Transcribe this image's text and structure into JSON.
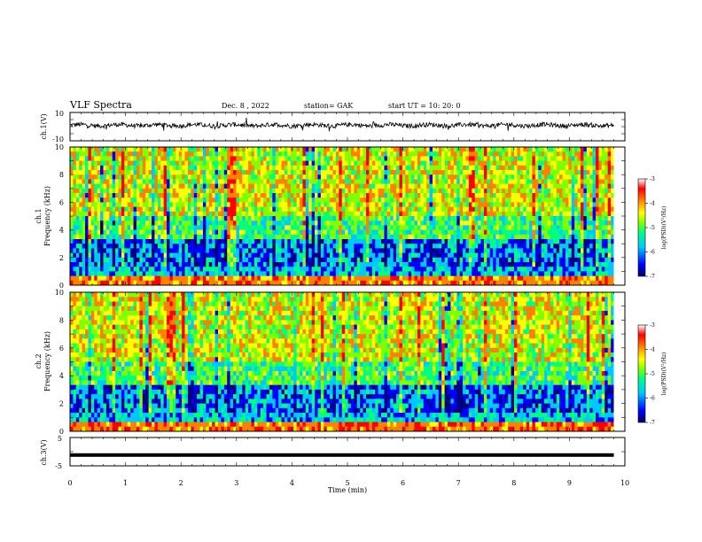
{
  "header": {
    "title": "VLF Spectra",
    "date": "Dec. 8 , 2022",
    "station": "station= GAK",
    "start": "start  UT =   10: 20: 0"
  },
  "chart_data": [
    {
      "name": "ch1-waveform",
      "type": "line",
      "ylabel": "ch.1(V)",
      "ylim": [
        -10,
        10
      ],
      "yticks": [
        "10",
        "-10"
      ],
      "xlim": [
        0,
        10
      ],
      "data_until_min": 9.8
    },
    {
      "name": "ch1-spectrogram",
      "type": "heatmap",
      "ylabel_top": "ch.1",
      "ylabel": "Frequency (kHz)",
      "ylim": [
        0,
        10
      ],
      "yticks": [
        "0",
        "2",
        "4",
        "6",
        "8",
        "10"
      ],
      "xlim": [
        0,
        10
      ],
      "colorbar": {
        "label": "log(PSD)(V²/Hz)",
        "range": [
          -7,
          -3
        ],
        "ticks": [
          "-3",
          "-4",
          "-5",
          "-6",
          "-7"
        ]
      }
    },
    {
      "name": "ch2-spectrogram",
      "type": "heatmap",
      "ylabel_top": "ch.2",
      "ylabel": "Frequency (kHz)",
      "ylim": [
        0,
        10
      ],
      "yticks": [
        "0",
        "2",
        "4",
        "6",
        "8",
        "10"
      ],
      "xlim": [
        0,
        10
      ],
      "colorbar": {
        "label": "log(PSD)(V²/Hz)",
        "range": [
          -7,
          -3
        ],
        "ticks": [
          "-3",
          "-4",
          "-5",
          "-6",
          "-7"
        ]
      }
    },
    {
      "name": "ch3-waveform",
      "type": "line",
      "ylabel": "ch.3(V)",
      "ylim": [
        -5,
        5
      ],
      "yticks": [
        "5",
        "-5"
      ],
      "xlim": [
        0,
        10
      ],
      "level": -1.2
    }
  ],
  "xaxis": {
    "label": "Time  (min)",
    "ticks": [
      "0",
      "1",
      "2",
      "3",
      "4",
      "5",
      "6",
      "7",
      "8",
      "9",
      "10"
    ]
  },
  "colors": {
    "palette": [
      "#000080",
      "#0000ff",
      "#00c8ff",
      "#00ff80",
      "#80ff00",
      "#ffff00",
      "#ff8000",
      "#ff0000",
      "#ffffff"
    ]
  }
}
